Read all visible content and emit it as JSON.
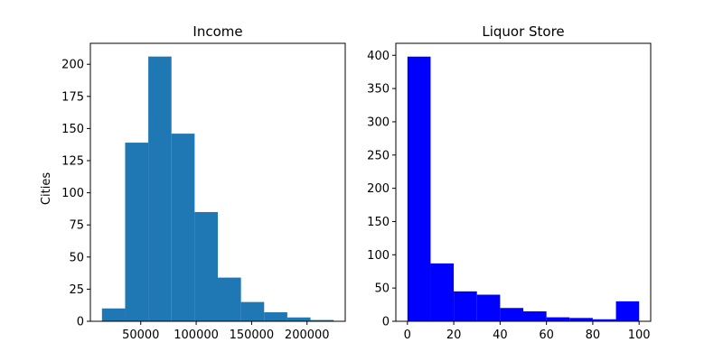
{
  "chart_data": [
    {
      "type": "bar",
      "title": "Income",
      "xlabel": "",
      "ylabel": "Cities",
      "bar_color": "#1f77b4",
      "bins": [
        {
          "x0": 15000,
          "x1": 35900,
          "value": 10
        },
        {
          "x0": 35900,
          "x1": 56800,
          "value": 139
        },
        {
          "x0": 56800,
          "x1": 77700,
          "value": 206
        },
        {
          "x0": 77700,
          "x1": 98600,
          "value": 146
        },
        {
          "x0": 98600,
          "x1": 119500,
          "value": 85
        },
        {
          "x0": 119500,
          "x1": 140400,
          "value": 34
        },
        {
          "x0": 140400,
          "x1": 161300,
          "value": 15
        },
        {
          "x0": 161300,
          "x1": 182200,
          "value": 7
        },
        {
          "x0": 182200,
          "x1": 203100,
          "value": 3
        },
        {
          "x0": 203100,
          "x1": 224000,
          "value": 1
        }
      ],
      "xlim": [
        4550,
        234450
      ],
      "ylim": [
        0,
        216.3
      ],
      "xticks": [
        50000,
        100000,
        150000,
        200000
      ],
      "xtick_labels": [
        "50000",
        "100000",
        "150000",
        "200000"
      ],
      "yticks": [
        0,
        25,
        50,
        75,
        100,
        125,
        150,
        175,
        200
      ],
      "ytick_labels": [
        "0",
        "25",
        "50",
        "75",
        "100",
        "125",
        "150",
        "175",
        "200"
      ],
      "grid": false
    },
    {
      "type": "bar",
      "title": "Liquor Store",
      "xlabel": "",
      "ylabel": "",
      "bar_color": "#0000ff",
      "bins": [
        {
          "x0": 0,
          "x1": 10,
          "value": 398
        },
        {
          "x0": 10,
          "x1": 20,
          "value": 87
        },
        {
          "x0": 20,
          "x1": 30,
          "value": 45
        },
        {
          "x0": 30,
          "x1": 40,
          "value": 40
        },
        {
          "x0": 40,
          "x1": 50,
          "value": 20
        },
        {
          "x0": 50,
          "x1": 60,
          "value": 15
        },
        {
          "x0": 60,
          "x1": 70,
          "value": 6
        },
        {
          "x0": 70,
          "x1": 80,
          "value": 5
        },
        {
          "x0": 80,
          "x1": 90,
          "value": 3
        },
        {
          "x0": 90,
          "x1": 100,
          "value": 30
        }
      ],
      "xlim": [
        -5,
        105
      ],
      "ylim": [
        0,
        418
      ],
      "xticks": [
        0,
        20,
        40,
        60,
        80,
        100
      ],
      "xtick_labels": [
        "0",
        "20",
        "40",
        "60",
        "80",
        "100"
      ],
      "yticks": [
        0,
        50,
        100,
        150,
        200,
        250,
        300,
        350,
        400
      ],
      "ytick_labels": [
        "0",
        "50",
        "100",
        "150",
        "200",
        "250",
        "300",
        "350",
        "400"
      ],
      "grid": false
    }
  ]
}
